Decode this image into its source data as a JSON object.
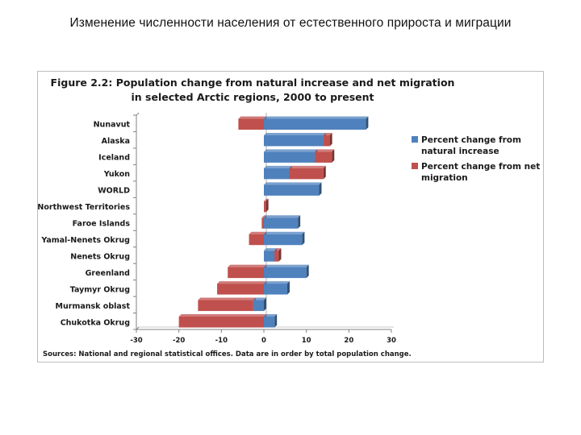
{
  "slide_title": "Изменение численности населения от естественного прироста и миграции",
  "source_note": "Sources: National and regional statistical offices.  Data are in order by total population change.",
  "colors": {
    "natural": "#4f81bd",
    "migration": "#c0504d",
    "axis": "#808080"
  },
  "chart_data": {
    "type": "bar",
    "orientation": "horizontal",
    "stacked": true,
    "title_lines": [
      "Figure 2.2: Population change from natural increase and net migration",
      "in selected Arctic regions, 2000 to present"
    ],
    "categories": [
      "Nunavut",
      "Alaska",
      "Iceland",
      "Yukon",
      "WORLD",
      "Northwest Territories",
      "Faroe Islands",
      "Yamal-Nenets Okrug",
      "Nenets Okrug",
      "Greenland",
      "Taymyr Okrug",
      "Murmansk oblast",
      "Chukotka Okrug"
    ],
    "series": [
      {
        "name": "Percent change from natural increase",
        "legend_lines": [
          "Percent change from",
          "natural increase"
        ],
        "color": "#4f81bd",
        "values": [
          24,
          14,
          12,
          6,
          13,
          0,
          8,
          9,
          2.5,
          10,
          5.5,
          -2.5,
          2.5
        ]
      },
      {
        "name": "Percent change from net migration",
        "legend_lines": [
          "Percent change from net",
          "migration"
        ],
        "color": "#c0504d",
        "values": [
          -6,
          1.5,
          4,
          8,
          0,
          0.5,
          -0.5,
          -3.5,
          1,
          -8.5,
          -11,
          -13,
          -20
        ]
      }
    ],
    "xlim": [
      -30,
      30
    ],
    "xticks": [
      -30,
      -20,
      -10,
      0,
      10,
      20,
      30
    ],
    "legend_position": "right",
    "grid": false
  }
}
